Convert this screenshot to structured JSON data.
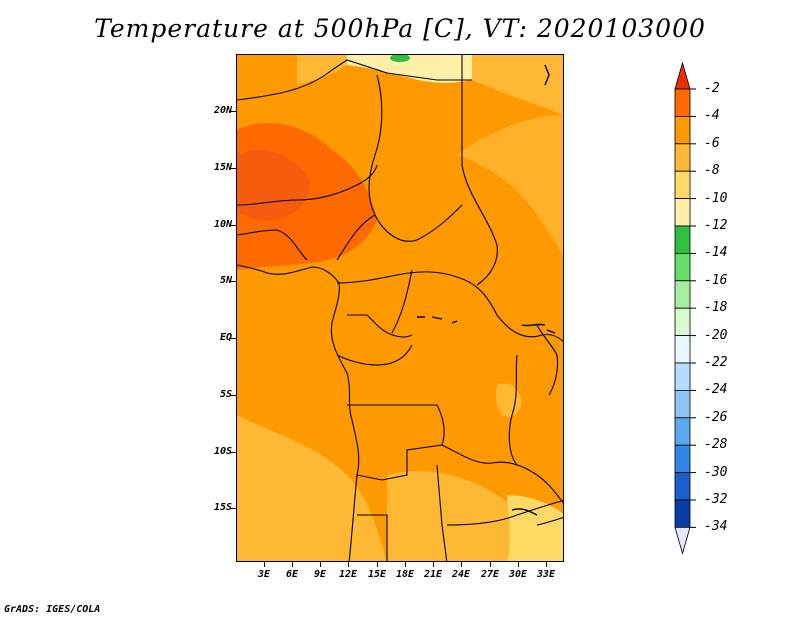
{
  "title": "Temperature at 500hPa [C], VT: 2020103000",
  "footer": "GrADS: IGES/COLA",
  "axes": {
    "y_labels": [
      "20N",
      "15N",
      "10N",
      "5N",
      "EQ",
      "5S",
      "10S",
      "15S"
    ],
    "x_labels": [
      "3E",
      "6E",
      "9E",
      "12E",
      "15E",
      "18E",
      "21E",
      "24E",
      "27E",
      "30E",
      "33E"
    ]
  },
  "colorbar": {
    "labels": [
      "-2",
      "-4",
      "-6",
      "-8",
      "-10",
      "-12",
      "-14",
      "-16",
      "-18",
      "-20",
      "-22",
      "-24",
      "-26",
      "-28",
      "-30",
      "-32",
      "-34"
    ],
    "colors": [
      "#ee2c00",
      "#ff6a00",
      "#ff9900",
      "#ffb833",
      "#ffd966",
      "#fff0a8",
      "#2fbf3f",
      "#66dd66",
      "#a8eea0",
      "#d8f8d0",
      "#e8f6ff",
      "#b6dcfb",
      "#8cc4f5",
      "#5aa8ee",
      "#2f86e4",
      "#1b5fcc",
      "#0a3ea5",
      "#061a6e"
    ]
  }
}
